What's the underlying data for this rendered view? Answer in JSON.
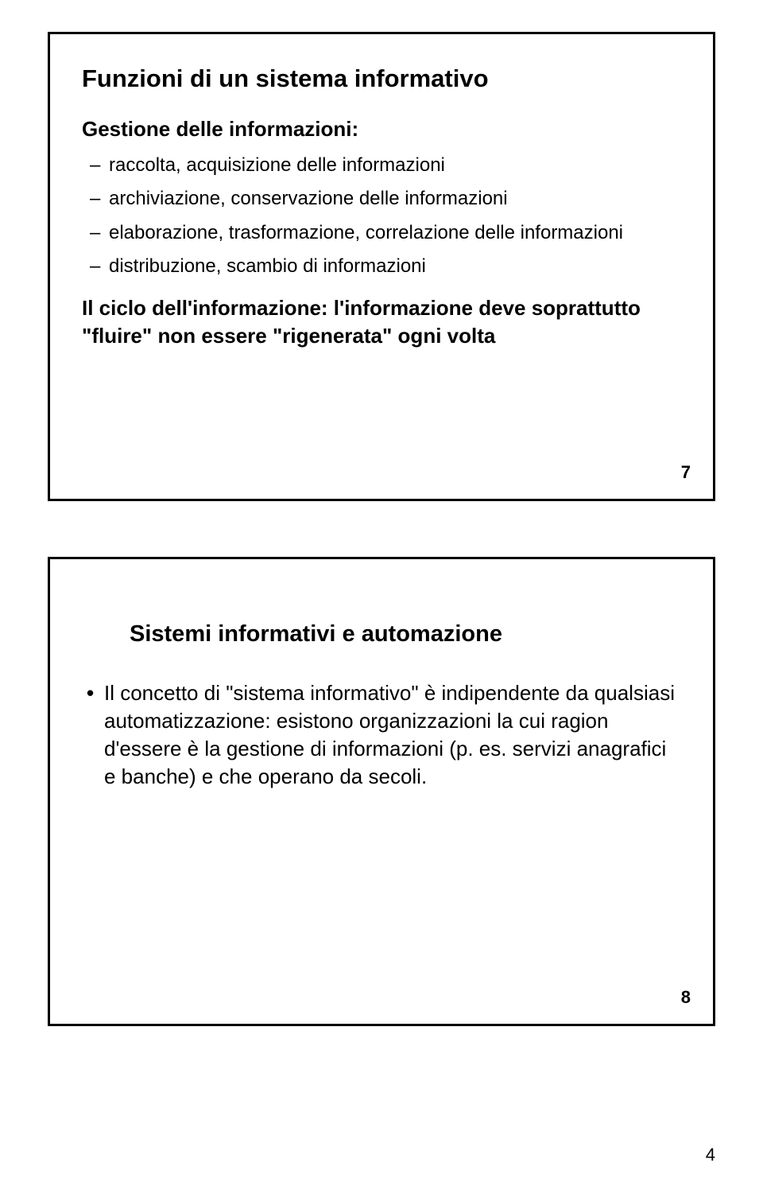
{
  "slide1": {
    "title": "Funzioni di un sistema informativo",
    "subheading": "Gestione delle informazioni:",
    "items": [
      "raccolta, acquisizione delle informazioni",
      "archiviazione, conservazione delle informazioni",
      "elaborazione, trasformazione, correlazione delle informazioni",
      "distribuzione, scambio di informazioni"
    ],
    "closing": "Il ciclo dell'informazione: l'informazione deve soprattutto \"fluire\" non essere \"rigenerata\" ogni volta",
    "slide_number": "7",
    "title_fontsize": 31,
    "subheading_fontsize": 26,
    "item_fontsize": 24,
    "closing_fontsize": 26,
    "number_fontsize": 22
  },
  "slide2": {
    "title": "Sistemi informativi e automazione",
    "items": [
      "Il concetto di \"sistema informativo\" è indipendente da qualsiasi automatizzazione: esistono organizzazioni la cui ragion d'essere è la gestione di informazioni (p. es. servizi anagrafici e banche) e che operano da secoli."
    ],
    "slide_number": "8",
    "title_fontsize": 29,
    "item_fontsize": 26,
    "number_fontsize": 22
  },
  "page_number": "4",
  "page_number_fontsize": 22,
  "colors": {
    "text": "#000000",
    "border": "#000000",
    "background": "#ffffff"
  }
}
